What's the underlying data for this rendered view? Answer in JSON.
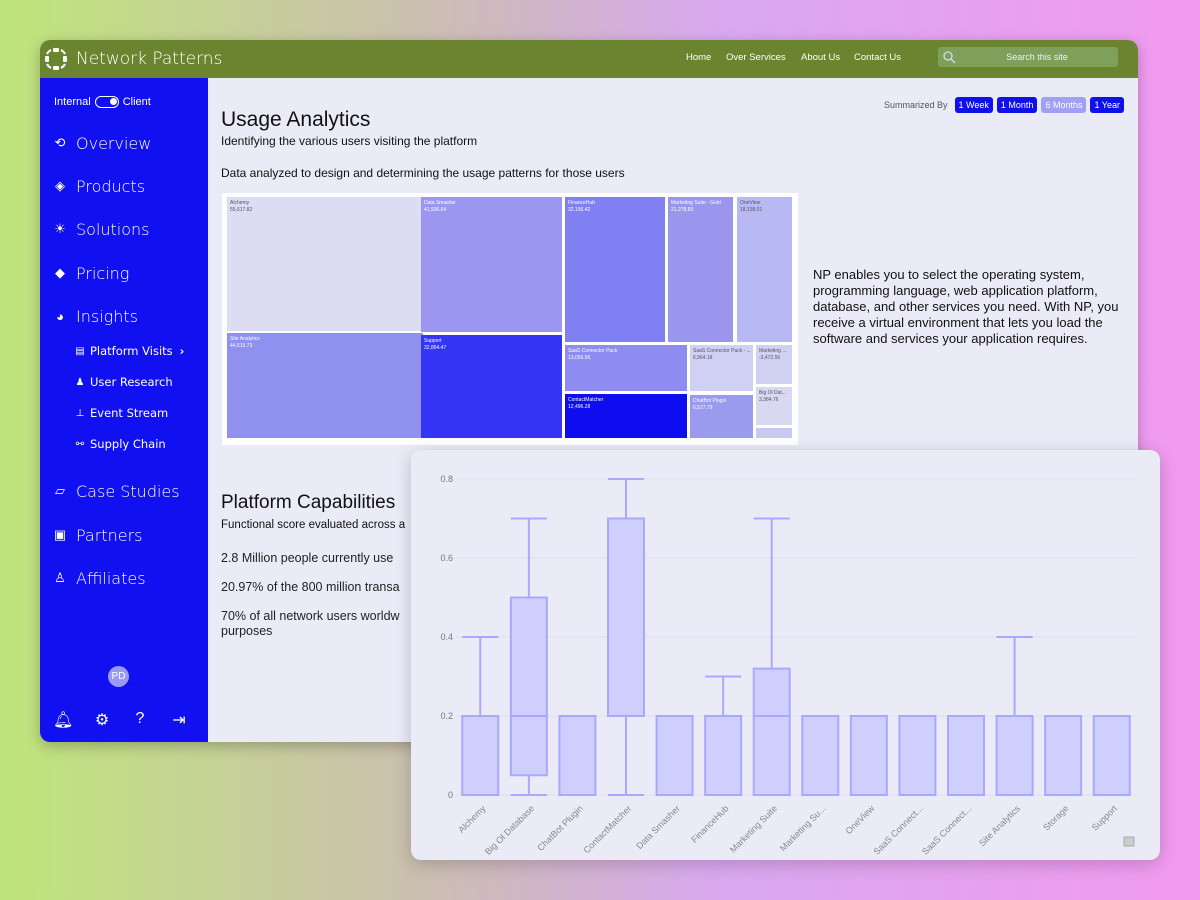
{
  "header": {
    "brand": "Network Patterns",
    "nav": [
      "Home",
      "Over Services",
      "About Us",
      "Contact Us"
    ],
    "search_placeholder": "Search this site"
  },
  "sidebar": {
    "toggle_left": "Internal",
    "toggle_right": "Client",
    "items": [
      {
        "label": "Overview",
        "icon": "refresh-icon"
      },
      {
        "label": "Products",
        "icon": "cube-icon"
      },
      {
        "label": "Solutions",
        "icon": "lightbulb-icon"
      },
      {
        "label": "Pricing",
        "icon": "tag-icon"
      },
      {
        "label": "Insights",
        "icon": "pie-chart-icon"
      }
    ],
    "subitems": [
      {
        "label": "Platform Visits",
        "icon": "document-icon"
      },
      {
        "label": "User Research",
        "icon": "user-check-icon"
      },
      {
        "label": "Event Stream",
        "icon": "sitemap-icon"
      },
      {
        "label": "Supply Chain",
        "icon": "link-icon"
      }
    ],
    "items2": [
      {
        "label": "Case Studies",
        "icon": "book-icon"
      },
      {
        "label": "Partners",
        "icon": "id-card-icon"
      },
      {
        "label": "Affiliates",
        "icon": "org-icon"
      }
    ],
    "avatar": "PD"
  },
  "main": {
    "title": "Usage Analytics",
    "subtitle": "Identifying the various users visiting the platform",
    "description": "Data analyzed to design and determining the usage patterns for those users",
    "summarized_by": "Summarized By",
    "periods": [
      "1 Week",
      "1 Month",
      "6 Months",
      "1 Year"
    ],
    "active_period": "6 Months",
    "np_text": "NP enables you to select the operating system, programming language, web application platform, database, and other services you need. With NP, you receive a virtual environment that lets you load the software and services your application requires.",
    "cap_title": "Platform Capabilities",
    "cap_sub": "Functional score evaluated across a",
    "facts": [
      "2.8 Million people currently use",
      "20.97% of the 800 million transa",
      "70% of all network users worldw purposes"
    ]
  },
  "treemap": [
    {
      "name": "Alchemy",
      "value": "55,617.82",
      "color": "#dcdcf2"
    },
    {
      "name": "Site Analytics",
      "value": "44,515.73",
      "color": "#9090f0"
    },
    {
      "name": "Data Smasher",
      "value": "41,936.64",
      "color": "#9b97f0"
    },
    {
      "name": "Support",
      "value": "32,864.47",
      "color": "#3535f5"
    },
    {
      "name": "FinanceHub",
      "value": "32,156.42",
      "color": "#8080f2"
    },
    {
      "name": "Marketing Suite - Gold",
      "value": "21,278.83",
      "color": "#9a96ee"
    },
    {
      "name": "OneView",
      "value": "18,138.01",
      "color": "#b8b8f2"
    },
    {
      "name": "SaaS Connector Pack",
      "value": "13,059.56",
      "color": "#8e8cf0"
    },
    {
      "name": "ContactMatcher",
      "value": "12,496.28",
      "color": "#0d0df0"
    },
    {
      "name": "SaaS Connector Pack - ...",
      "value": "6,964.18",
      "color": "#cfd0f2"
    },
    {
      "name": "ChatBot Plugin",
      "value": "6,527.79",
      "color": "#9a9aee"
    },
    {
      "name": "Marketing ...",
      "value": "-3,472.56",
      "color": "#d0d0f0"
    },
    {
      "name": "Big Ol Dat...",
      "value": "3,384.76",
      "color": "#d8d8f0"
    },
    {
      "name": "",
      "value": "",
      "color": "#c8c8f0"
    }
  ],
  "chart_data": {
    "type": "box",
    "ylim": [
      0,
      0.8
    ],
    "yticks": [
      "0",
      "0.2",
      "0.4",
      "0.6",
      "0.8"
    ],
    "categories": [
      "Alchemy",
      "Big Ol Database",
      "ChatBot Plugin",
      "ContactMatcher",
      "Data Smasher",
      "FinanceHub",
      "Marketing Suite",
      "Marketing Su...",
      "OneView",
      "SaaS Connect...",
      "SaaS Connect...",
      "Site Analytics",
      "Storage",
      "Support"
    ],
    "boxes": [
      {
        "min": 0,
        "q1": 0,
        "median": 0,
        "q3": 0.2,
        "max": 0.4
      },
      {
        "min": 0,
        "q1": 0.05,
        "median": 0.2,
        "q3": 0.5,
        "max": 0.7
      },
      {
        "min": 0,
        "q1": 0,
        "median": 0,
        "q3": 0.2,
        "max": 0.2
      },
      {
        "min": 0,
        "q1": 0.2,
        "median": 0.2,
        "q3": 0.7,
        "max": 0.8
      },
      {
        "min": 0,
        "q1": 0,
        "median": 0,
        "q3": 0.2,
        "max": 0.2
      },
      {
        "min": 0,
        "q1": 0,
        "median": 0,
        "q3": 0.2,
        "max": 0.3
      },
      {
        "min": 0,
        "q1": 0,
        "median": 0.2,
        "q3": 0.32,
        "max": 0.7
      },
      {
        "min": 0,
        "q1": 0,
        "median": 0,
        "q3": 0.2,
        "max": 0.2
      },
      {
        "min": 0,
        "q1": 0,
        "median": 0,
        "q3": 0.2,
        "max": 0.2
      },
      {
        "min": 0,
        "q1": 0,
        "median": 0,
        "q3": 0.2,
        "max": 0.2
      },
      {
        "min": 0,
        "q1": 0,
        "median": 0,
        "q3": 0.2,
        "max": 0.2
      },
      {
        "min": 0,
        "q1": 0,
        "median": 0,
        "q3": 0.2,
        "max": 0.4
      },
      {
        "min": 0,
        "q1": 0,
        "median": 0,
        "q3": 0.2,
        "max": 0.2
      },
      {
        "min": 0,
        "q1": 0,
        "median": 0,
        "q3": 0.2,
        "max": 0.2
      }
    ],
    "color": "#a8a8ff",
    "fill": "#cfcffd"
  }
}
